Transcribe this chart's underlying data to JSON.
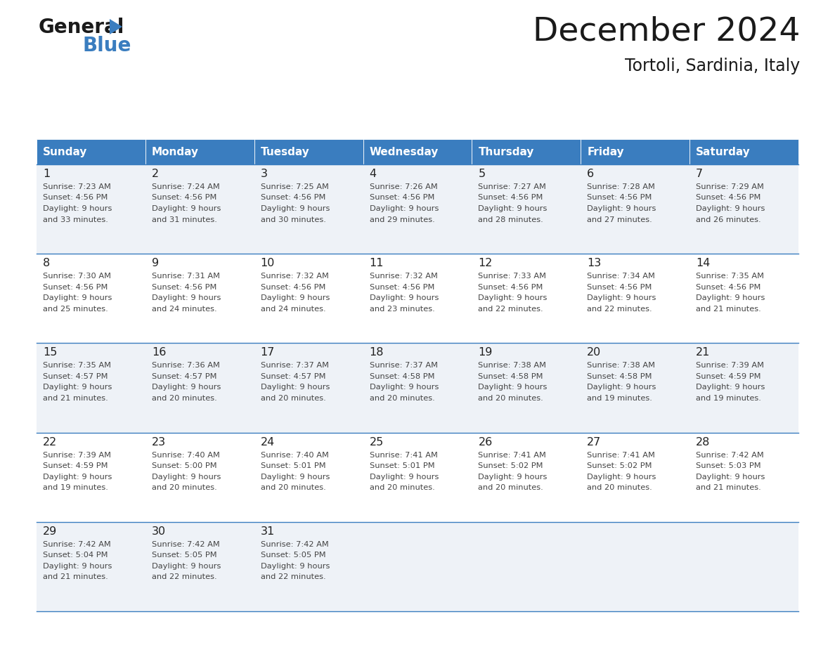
{
  "title": "December 2024",
  "subtitle": "Tortoli, Sardinia, Italy",
  "header_color": "#3a7dbf",
  "header_text_color": "#ffffff",
  "cell_bg_light": "#eef2f7",
  "cell_bg_white": "#ffffff",
  "border_color": "#3a7dbf",
  "text_color": "#444444",
  "day_num_color": "#222222",
  "day_headers": [
    "Sunday",
    "Monday",
    "Tuesday",
    "Wednesday",
    "Thursday",
    "Friday",
    "Saturday"
  ],
  "weeks": [
    [
      {
        "day": 1,
        "sunrise": "7:23 AM",
        "sunset": "4:56 PM",
        "daylight_hours": 9,
        "daylight_minutes": 33
      },
      {
        "day": 2,
        "sunrise": "7:24 AM",
        "sunset": "4:56 PM",
        "daylight_hours": 9,
        "daylight_minutes": 31
      },
      {
        "day": 3,
        "sunrise": "7:25 AM",
        "sunset": "4:56 PM",
        "daylight_hours": 9,
        "daylight_minutes": 30
      },
      {
        "day": 4,
        "sunrise": "7:26 AM",
        "sunset": "4:56 PM",
        "daylight_hours": 9,
        "daylight_minutes": 29
      },
      {
        "day": 5,
        "sunrise": "7:27 AM",
        "sunset": "4:56 PM",
        "daylight_hours": 9,
        "daylight_minutes": 28
      },
      {
        "day": 6,
        "sunrise": "7:28 AM",
        "sunset": "4:56 PM",
        "daylight_hours": 9,
        "daylight_minutes": 27
      },
      {
        "day": 7,
        "sunrise": "7:29 AM",
        "sunset": "4:56 PM",
        "daylight_hours": 9,
        "daylight_minutes": 26
      }
    ],
    [
      {
        "day": 8,
        "sunrise": "7:30 AM",
        "sunset": "4:56 PM",
        "daylight_hours": 9,
        "daylight_minutes": 25
      },
      {
        "day": 9,
        "sunrise": "7:31 AM",
        "sunset": "4:56 PM",
        "daylight_hours": 9,
        "daylight_minutes": 24
      },
      {
        "day": 10,
        "sunrise": "7:32 AM",
        "sunset": "4:56 PM",
        "daylight_hours": 9,
        "daylight_minutes": 24
      },
      {
        "day": 11,
        "sunrise": "7:32 AM",
        "sunset": "4:56 PM",
        "daylight_hours": 9,
        "daylight_minutes": 23
      },
      {
        "day": 12,
        "sunrise": "7:33 AM",
        "sunset": "4:56 PM",
        "daylight_hours": 9,
        "daylight_minutes": 22
      },
      {
        "day": 13,
        "sunrise": "7:34 AM",
        "sunset": "4:56 PM",
        "daylight_hours": 9,
        "daylight_minutes": 22
      },
      {
        "day": 14,
        "sunrise": "7:35 AM",
        "sunset": "4:56 PM",
        "daylight_hours": 9,
        "daylight_minutes": 21
      }
    ],
    [
      {
        "day": 15,
        "sunrise": "7:35 AM",
        "sunset": "4:57 PM",
        "daylight_hours": 9,
        "daylight_minutes": 21
      },
      {
        "day": 16,
        "sunrise": "7:36 AM",
        "sunset": "4:57 PM",
        "daylight_hours": 9,
        "daylight_minutes": 20
      },
      {
        "day": 17,
        "sunrise": "7:37 AM",
        "sunset": "4:57 PM",
        "daylight_hours": 9,
        "daylight_minutes": 20
      },
      {
        "day": 18,
        "sunrise": "7:37 AM",
        "sunset": "4:58 PM",
        "daylight_hours": 9,
        "daylight_minutes": 20
      },
      {
        "day": 19,
        "sunrise": "7:38 AM",
        "sunset": "4:58 PM",
        "daylight_hours": 9,
        "daylight_minutes": 20
      },
      {
        "day": 20,
        "sunrise": "7:38 AM",
        "sunset": "4:58 PM",
        "daylight_hours": 9,
        "daylight_minutes": 19
      },
      {
        "day": 21,
        "sunrise": "7:39 AM",
        "sunset": "4:59 PM",
        "daylight_hours": 9,
        "daylight_minutes": 19
      }
    ],
    [
      {
        "day": 22,
        "sunrise": "7:39 AM",
        "sunset": "4:59 PM",
        "daylight_hours": 9,
        "daylight_minutes": 19
      },
      {
        "day": 23,
        "sunrise": "7:40 AM",
        "sunset": "5:00 PM",
        "daylight_hours": 9,
        "daylight_minutes": 20
      },
      {
        "day": 24,
        "sunrise": "7:40 AM",
        "sunset": "5:01 PM",
        "daylight_hours": 9,
        "daylight_minutes": 20
      },
      {
        "day": 25,
        "sunrise": "7:41 AM",
        "sunset": "5:01 PM",
        "daylight_hours": 9,
        "daylight_minutes": 20
      },
      {
        "day": 26,
        "sunrise": "7:41 AM",
        "sunset": "5:02 PM",
        "daylight_hours": 9,
        "daylight_minutes": 20
      },
      {
        "day": 27,
        "sunrise": "7:41 AM",
        "sunset": "5:02 PM",
        "daylight_hours": 9,
        "daylight_minutes": 20
      },
      {
        "day": 28,
        "sunrise": "7:42 AM",
        "sunset": "5:03 PM",
        "daylight_hours": 9,
        "daylight_minutes": 21
      }
    ],
    [
      {
        "day": 29,
        "sunrise": "7:42 AM",
        "sunset": "5:04 PM",
        "daylight_hours": 9,
        "daylight_minutes": 21
      },
      {
        "day": 30,
        "sunrise": "7:42 AM",
        "sunset": "5:05 PM",
        "daylight_hours": 9,
        "daylight_minutes": 22
      },
      {
        "day": 31,
        "sunrise": "7:42 AM",
        "sunset": "5:05 PM",
        "daylight_hours": 9,
        "daylight_minutes": 22
      },
      null,
      null,
      null,
      null
    ]
  ]
}
